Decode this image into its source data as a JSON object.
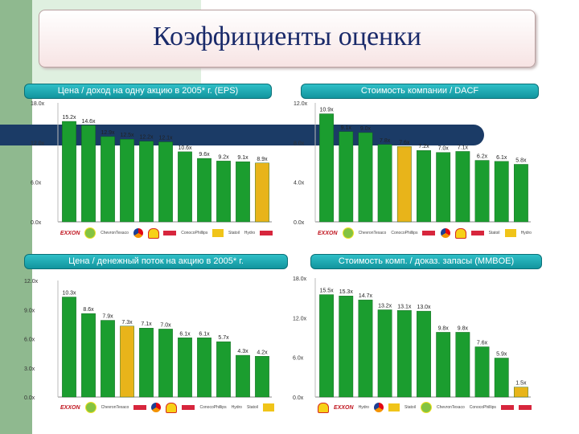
{
  "title": "Коэффициенты оценки",
  "colors": {
    "bar_green": "#1b9d2f",
    "bar_highlight": "#e8b41a",
    "header_teal": "#1aa8b0",
    "band_navy": "#1b3b66"
  },
  "chart_data": [
    {
      "type": "bar",
      "title": "Цена / доход на одну акцию в 2005* г. (EPS)",
      "yticks": [
        "0.0x",
        "6.0x",
        "12.0x",
        "18.0x"
      ],
      "ylim": [
        0,
        18
      ],
      "values": [
        15.2,
        14.6,
        12.9,
        12.5,
        12.2,
        12.1,
        10.6,
        9.6,
        9.2,
        9.1,
        8.9
      ],
      "labels": [
        "15.2x",
        "14.6x",
        "12.9x",
        "12.5x",
        "12.2x",
        "12.1x",
        "10.6x",
        "9.6x",
        "9.2x",
        "9.1x",
        "8.9x"
      ],
      "highlight_index": 10,
      "logos": [
        "EXXON",
        "bp",
        "ChevronTexaco",
        "total",
        "Shell",
        "Repsol",
        "ConocoPhillips",
        "Eni",
        "Statoil",
        "Hydro",
        "BG"
      ]
    },
    {
      "type": "bar",
      "title": "Стоимость компании / DACF",
      "yticks": [
        "0.0x",
        "4.0x",
        "8.0x",
        "12.0x"
      ],
      "ylim": [
        0,
        12
      ],
      "values": [
        10.9,
        9.1,
        9.0,
        7.8,
        7.6,
        7.2,
        7.0,
        7.1,
        6.2,
        6.1,
        5.8
      ],
      "labels": [
        "10.9x",
        "9.1x",
        "9.0x",
        "7.8x",
        "7.6x",
        "7.2x",
        "7.0x",
        "7.1x",
        "6.2x",
        "6.1x",
        "5.8x"
      ],
      "highlight_index": 4,
      "logos": [
        "EXXON",
        "bp",
        "ChevronTexaco",
        "ConocoPhillips",
        "BG",
        "total",
        "Shell",
        "Repsol",
        "Statoil",
        "Eni",
        "Hydro"
      ]
    },
    {
      "type": "bar",
      "title": "Цена / денежный поток на акцию в 2005* г.",
      "yticks": [
        "0.0x",
        "3.0x",
        "6.0x",
        "9.0x",
        "12.0x"
      ],
      "ylim": [
        0,
        12
      ],
      "values": [
        10.3,
        8.6,
        7.9,
        7.3,
        7.1,
        7.0,
        6.1,
        6.1,
        5.7,
        4.3,
        4.2
      ],
      "labels": [
        "10.3x",
        "8.6x",
        "7.9x",
        "7.3x",
        "7.1x",
        "7.0x",
        "6.1x",
        "6.1x",
        "5.7x",
        "4.3x",
        "4.2x"
      ],
      "highlight_index": 3,
      "logos": [
        "EXXON",
        "bp",
        "ChevronTexaco",
        "BG",
        "total",
        "Shell",
        "Repsol",
        "ConocoPhillips",
        "Hydro",
        "Statoil",
        "Eni"
      ]
    },
    {
      "type": "bar",
      "title": "Стоимость комп. / доказ. запасы (MMBOE)",
      "yticks": [
        "0.0x",
        "6.0x",
        "12.0x",
        "18.0x"
      ],
      "ylim": [
        0,
        18
      ],
      "values": [
        15.5,
        15.3,
        14.7,
        13.2,
        13.1,
        13.0,
        9.8,
        9.8,
        7.6,
        5.9,
        1.5
      ],
      "labels": [
        "15.5x",
        "15.3x",
        "14.7x",
        "13.2x",
        "13.1x",
        "13.0x",
        "9.8x",
        "9.8x",
        "7.6x",
        "5.9x",
        "1.5x"
      ],
      "highlight_index": 10,
      "logos": [
        "Shell",
        "EXXON",
        "Hydro",
        "total",
        "Eni",
        "Statoil",
        "bp",
        "ChevronTexaco",
        "ConocoPhillips",
        "Repsol",
        "BG"
      ]
    }
  ]
}
